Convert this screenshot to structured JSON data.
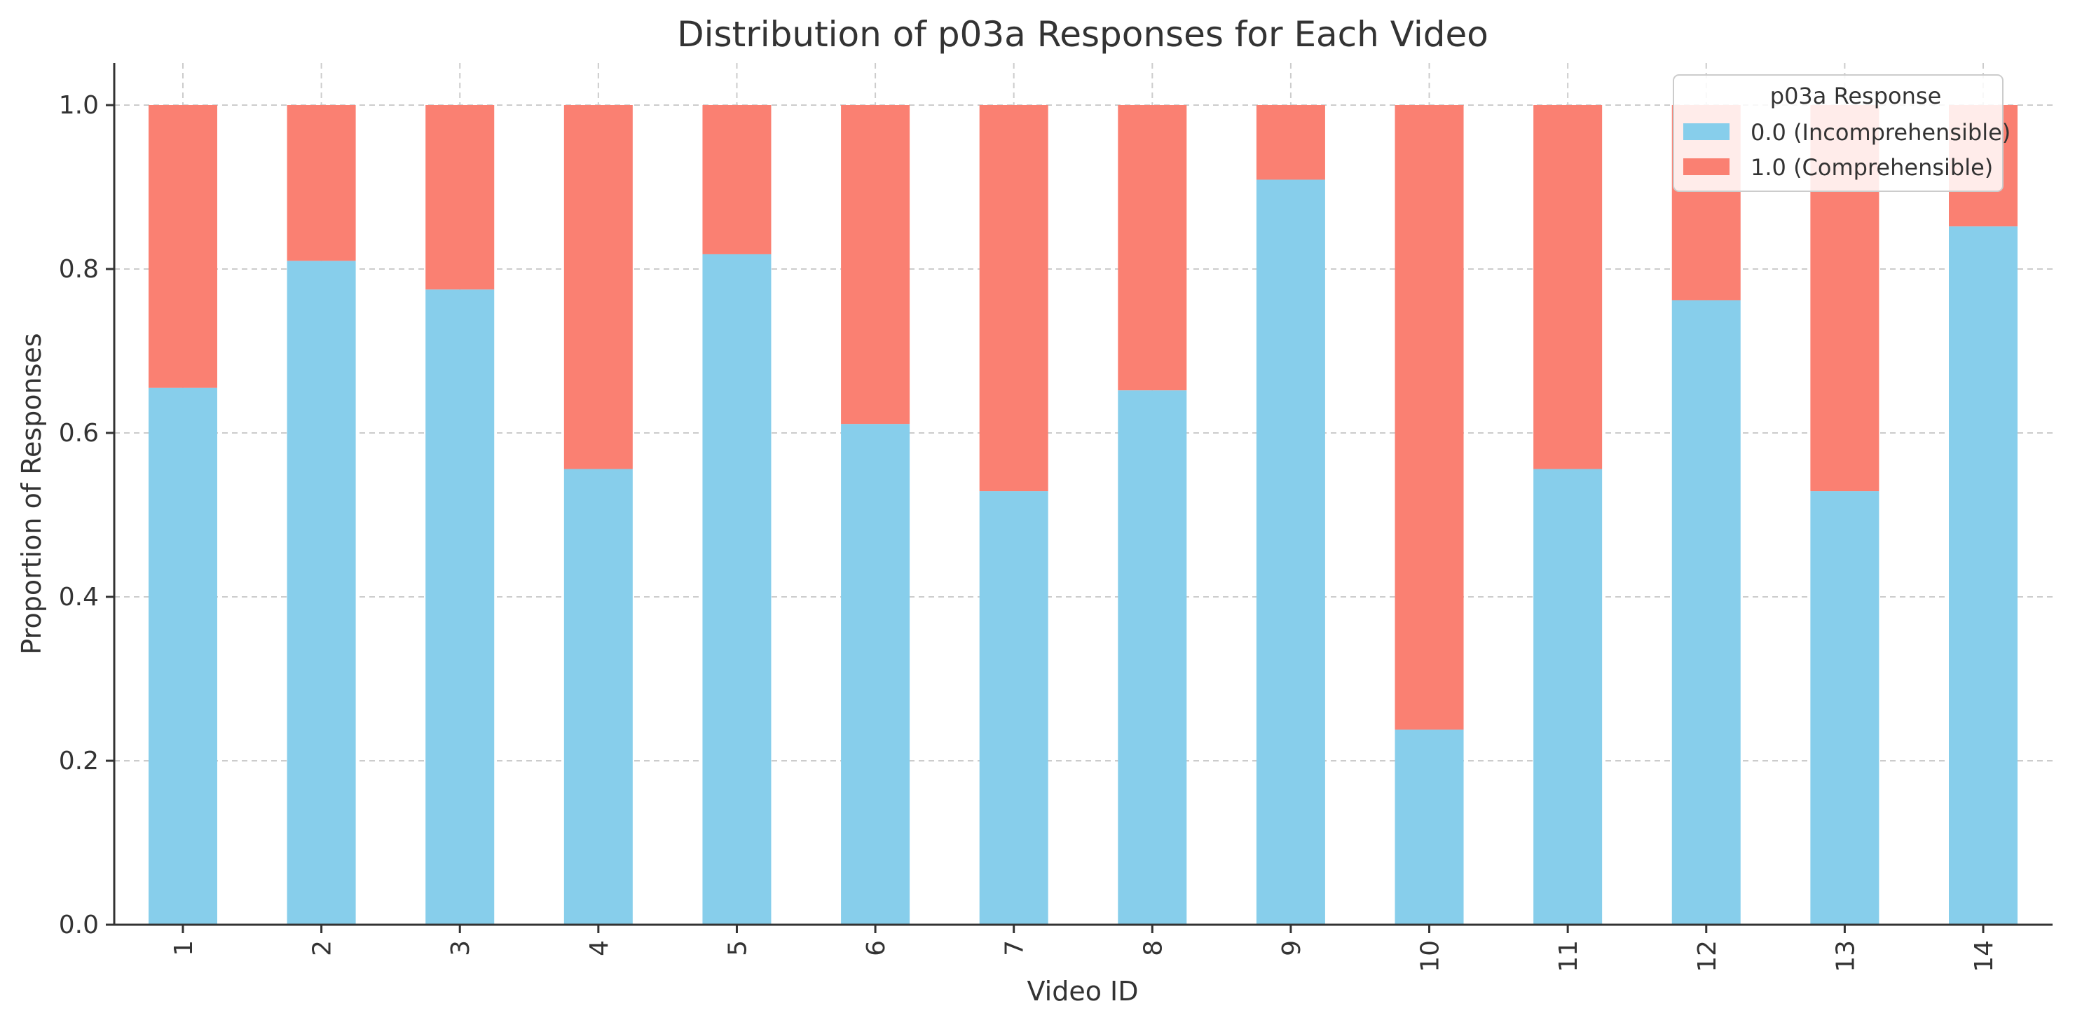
{
  "chart_data": {
    "type": "bar",
    "stacked": true,
    "title": "Distribution of p03a Responses for Each Video",
    "xlabel": "Video ID",
    "ylabel": "Proportion of Responses",
    "categories": [
      "1",
      "2",
      "3",
      "4",
      "5",
      "6",
      "7",
      "8",
      "9",
      "10",
      "11",
      "12",
      "13",
      "14"
    ],
    "series": [
      {
        "name": "0.0 (Incomprehensible)",
        "color": "#87CEEB",
        "values": [
          0.655,
          0.81,
          0.775,
          0.556,
          0.818,
          0.611,
          0.529,
          0.652,
          0.909,
          0.238,
          0.556,
          0.762,
          0.529,
          0.852
        ]
      },
      {
        "name": "1.0 (Comprehensible)",
        "color": "#FA8072",
        "values": [
          0.345,
          0.19,
          0.225,
          0.444,
          0.182,
          0.389,
          0.471,
          0.348,
          0.091,
          0.762,
          0.444,
          0.238,
          0.471,
          0.148
        ]
      }
    ],
    "ylim": [
      0,
      1.05
    ],
    "yticks": [
      "0.0",
      "0.2",
      "0.4",
      "0.6",
      "0.8",
      "1.0"
    ],
    "grid": true,
    "legend": {
      "title": "p03a Response",
      "placement": "top-right"
    }
  }
}
